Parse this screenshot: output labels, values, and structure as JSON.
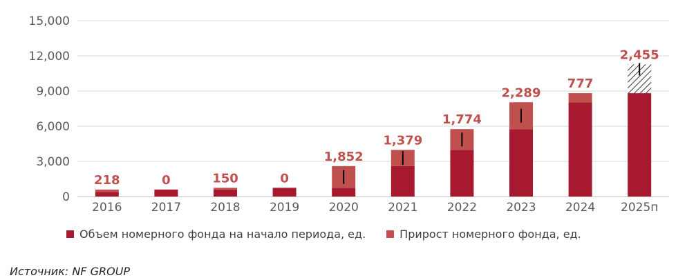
{
  "chart_data": {
    "type": "bar",
    "stacked": true,
    "categories": [
      "2016",
      "2017",
      "2018",
      "2019",
      "2020",
      "2021",
      "2022",
      "2023",
      "2024",
      "2025п"
    ],
    "series": [
      {
        "name": "Объем номерного фонда на начало периода, ед.",
        "color": "#a6192e",
        "values": [
          380,
          598,
          598,
          748,
          748,
          2600,
          3979,
          5753,
          8042,
          8819
        ]
      },
      {
        "name": "Прирост номерного фонда, ед.",
        "color": "#c0504d",
        "values": [
          218,
          0,
          150,
          0,
          1852,
          1379,
          1774,
          2289,
          777,
          2455
        ]
      }
    ],
    "data_labels": [
      "218",
      "0",
      "150",
      "0",
      "1,852",
      "1,379",
      "1,774",
      "2,289",
      "777",
      "2,455"
    ],
    "error_bars": [
      0,
      0,
      0,
      0,
      1,
      1,
      1,
      1,
      0,
      1
    ],
    "projected_hatched": [
      false,
      false,
      false,
      false,
      false,
      false,
      false,
      false,
      false,
      true
    ],
    "yticks": [
      "0",
      "3,000",
      "6,000",
      "9,000",
      "12,000",
      "15,000"
    ],
    "ylim": [
      0,
      15000
    ],
    "grid": true,
    "legend_position": "bottom"
  },
  "source": "Источник: NF GROUP"
}
